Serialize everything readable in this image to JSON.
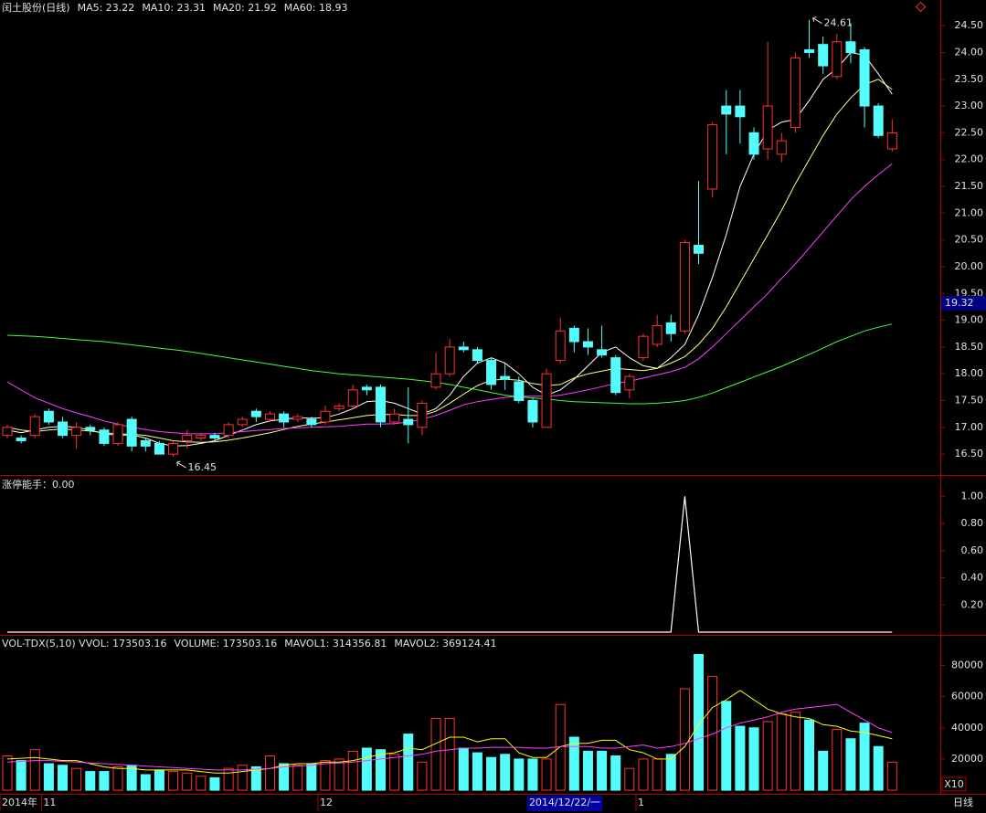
{
  "chart_data": [
    {
      "type": "candlestick",
      "title": "闰土股份(日线)",
      "up_color": "#ff3232",
      "down_color": "#54fcfc",
      "open": [
        16.85,
        16.8,
        16.85,
        17.3,
        17.1,
        16.85,
        17.0,
        16.95,
        16.7,
        17.15,
        16.75,
        16.7,
        16.5,
        16.75,
        16.8,
        16.85,
        16.85,
        17.05,
        17.3,
        17.15,
        17.25,
        17.15,
        17.15,
        17.1,
        17.35,
        17.4,
        17.75,
        17.75,
        17.1,
        17.15,
        17.0,
        17.75,
        18.0,
        18.5,
        18.45,
        18.25,
        17.95,
        17.85,
        17.5,
        17.0,
        18.25,
        18.85,
        18.6,
        18.45,
        18.3,
        17.7,
        18.3,
        18.55,
        18.95,
        18.8,
        20.4,
        21.45,
        23.0,
        23.0,
        22.5,
        22.2,
        22.1,
        22.6,
        24.05,
        24.15,
        23.55,
        24.2,
        24.05,
        23.0,
        22.2
      ],
      "high": [
        17.05,
        16.85,
        17.25,
        17.35,
        17.2,
        17.1,
        17.05,
        17.0,
        17.1,
        17.2,
        16.8,
        16.75,
        16.75,
        16.95,
        16.9,
        16.9,
        17.1,
        17.2,
        17.35,
        17.3,
        17.3,
        17.25,
        17.2,
        17.4,
        17.45,
        17.8,
        17.8,
        17.8,
        17.35,
        17.75,
        17.5,
        18.4,
        18.65,
        18.6,
        18.5,
        18.3,
        18.2,
        17.95,
        17.55,
        18.1,
        19.05,
        18.9,
        18.85,
        18.9,
        18.35,
        18.0,
        18.75,
        19.1,
        19.1,
        20.5,
        21.6,
        22.7,
        23.3,
        23.3,
        22.6,
        24.2,
        22.5,
        24.0,
        24.61,
        24.3,
        24.35,
        24.55,
        24.1,
        23.05,
        22.75
      ],
      "low": [
        16.8,
        16.7,
        16.8,
        17.05,
        16.8,
        16.6,
        16.85,
        16.65,
        16.65,
        16.55,
        16.55,
        16.5,
        16.45,
        16.6,
        16.75,
        16.75,
        16.8,
        17.0,
        17.1,
        17.1,
        17.0,
        17.1,
        17.0,
        17.05,
        17.3,
        17.35,
        17.6,
        17.0,
        17.05,
        16.7,
        16.85,
        17.7,
        17.95,
        18.4,
        18.2,
        17.7,
        17.7,
        17.45,
        17.0,
        17.0,
        18.2,
        18.4,
        18.35,
        18.3,
        17.6,
        17.55,
        18.25,
        18.5,
        18.6,
        18.75,
        20.05,
        21.3,
        22.1,
        22.3,
        22.0,
        22.0,
        21.95,
        22.5,
        23.9,
        23.6,
        23.5,
        23.8,
        22.6,
        22.4,
        22.15
      ],
      "close": [
        17.0,
        16.75,
        17.2,
        17.1,
        16.85,
        17.0,
        16.95,
        16.7,
        17.05,
        16.65,
        16.65,
        16.5,
        16.7,
        16.85,
        16.85,
        16.8,
        17.05,
        17.15,
        17.2,
        17.25,
        17.1,
        17.2,
        17.05,
        17.3,
        17.4,
        17.7,
        17.7,
        17.1,
        17.25,
        17.05,
        17.45,
        18.0,
        18.5,
        18.45,
        18.25,
        17.8,
        17.9,
        17.5,
        17.1,
        18.0,
        18.8,
        18.6,
        18.5,
        18.35,
        17.65,
        17.95,
        18.7,
        18.9,
        18.75,
        20.45,
        20.25,
        22.65,
        22.85,
        22.8,
        22.1,
        23.0,
        22.35,
        23.9,
        24.0,
        23.75,
        24.2,
        24.0,
        23.0,
        22.45,
        22.5
      ],
      "series": [
        {
          "name": "MA5: 23.22",
          "color": "#ffffff",
          "values": [
            16.95,
            16.9,
            16.95,
            17.0,
            17.02,
            17.0,
            16.95,
            16.88,
            16.85,
            16.86,
            16.8,
            16.7,
            16.65,
            16.66,
            16.7,
            16.75,
            16.85,
            16.95,
            17.05,
            17.12,
            17.15,
            17.18,
            17.17,
            17.18,
            17.25,
            17.35,
            17.48,
            17.5,
            17.45,
            17.35,
            17.25,
            17.35,
            17.6,
            17.95,
            18.2,
            18.3,
            18.2,
            18.0,
            17.75,
            17.6,
            17.7,
            17.9,
            18.15,
            18.4,
            18.5,
            18.3,
            18.15,
            18.1,
            18.3,
            18.55,
            19.1,
            19.8,
            20.6,
            21.5,
            22.1,
            22.55,
            22.7,
            22.75,
            23.1,
            23.5,
            23.7,
            24.0,
            23.95,
            23.6,
            23.22
          ]
        },
        {
          "name": "MA10: 23.31",
          "color": "#ffff80",
          "values": [
            17.0,
            16.95,
            16.92,
            16.95,
            16.97,
            16.95,
            16.93,
            16.9,
            16.88,
            16.87,
            16.85,
            16.8,
            16.75,
            16.73,
            16.72,
            16.73,
            16.76,
            16.8,
            16.85,
            16.9,
            16.96,
            17.02,
            17.06,
            17.1,
            17.14,
            17.18,
            17.22,
            17.24,
            17.24,
            17.22,
            17.22,
            17.3,
            17.45,
            17.62,
            17.78,
            17.88,
            17.9,
            17.88,
            17.82,
            17.78,
            17.8,
            17.92,
            18.0,
            18.05,
            18.1,
            18.08,
            18.06,
            18.1,
            18.2,
            18.32,
            18.55,
            18.85,
            19.25,
            19.7,
            20.15,
            20.6,
            21.05,
            21.55,
            22.0,
            22.45,
            22.85,
            23.15,
            23.4,
            23.5,
            23.31
          ]
        },
        {
          "name": "MA20: 21.92",
          "color": "#ff40ff",
          "values": [
            17.85,
            17.7,
            17.55,
            17.45,
            17.35,
            17.27,
            17.2,
            17.12,
            17.06,
            17.0,
            16.96,
            16.92,
            16.9,
            16.88,
            16.88,
            16.88,
            16.9,
            16.92,
            16.94,
            16.96,
            16.98,
            16.99,
            17.0,
            17.01,
            17.02,
            17.04,
            17.06,
            17.06,
            17.07,
            17.1,
            17.15,
            17.22,
            17.32,
            17.42,
            17.48,
            17.52,
            17.56,
            17.58,
            17.58,
            17.58,
            17.6,
            17.65,
            17.7,
            17.76,
            17.82,
            17.86,
            17.92,
            17.98,
            18.04,
            18.12,
            18.28,
            18.5,
            18.75,
            19.0,
            19.25,
            19.5,
            19.78,
            20.05,
            20.35,
            20.65,
            20.95,
            21.25,
            21.5,
            21.72,
            21.92
          ]
        },
        {
          "name": "MA60: 18.93",
          "color": "#40ff40",
          "values": [
            18.72,
            18.71,
            18.7,
            18.68,
            18.66,
            18.64,
            18.62,
            18.6,
            18.57,
            18.54,
            18.51,
            18.48,
            18.45,
            18.42,
            18.38,
            18.34,
            18.3,
            18.26,
            18.22,
            18.18,
            18.14,
            18.1,
            18.06,
            18.03,
            18.0,
            17.98,
            17.96,
            17.94,
            17.92,
            17.9,
            17.87,
            17.84,
            17.8,
            17.75,
            17.7,
            17.65,
            17.6,
            17.57,
            17.55,
            17.53,
            17.5,
            17.48,
            17.47,
            17.46,
            17.45,
            17.44,
            17.44,
            17.45,
            17.47,
            17.5,
            17.56,
            17.64,
            17.74,
            17.84,
            17.94,
            18.04,
            18.14,
            18.25,
            18.36,
            18.48,
            18.6,
            18.7,
            18.8,
            18.87,
            18.93
          ]
        }
      ],
      "annotations": [
        {
          "value": 24.61,
          "label": "24.61",
          "at": "high"
        },
        {
          "value": 16.45,
          "label": "16.45",
          "at": "low"
        }
      ],
      "price_marker": {
        "value": 19.32,
        "label": "19.32"
      },
      "ylim": [
        16.11,
        24.98
      ],
      "yticks": [
        {
          "value": 16.5,
          "label": "16.50"
        },
        {
          "value": 17,
          "label": "17.00"
        },
        {
          "value": 17.5,
          "label": "17.50"
        },
        {
          "value": 18,
          "label": "18.00"
        },
        {
          "value": 18.5,
          "label": "18.50"
        },
        {
          "value": 19,
          "label": "19.00"
        },
        {
          "value": 19.5,
          "label": "19.50"
        },
        {
          "value": 20,
          "label": "20.00"
        },
        {
          "value": 20.5,
          "label": "20.50"
        },
        {
          "value": 21,
          "label": "21.00"
        },
        {
          "value": 21.5,
          "label": "21.50"
        },
        {
          "value": 22,
          "label": "22.00"
        },
        {
          "value": 22.5,
          "label": "22.50"
        },
        {
          "value": 23,
          "label": "23.00"
        },
        {
          "value": 23.5,
          "label": "23.50"
        },
        {
          "value": 24,
          "label": "24.00"
        },
        {
          "value": 24.5,
          "label": "24.50"
        }
      ]
    },
    {
      "type": "line",
      "title": "涨停能手：0.00",
      "color": "#ffffff",
      "values": [
        0,
        0,
        0,
        0,
        0,
        0,
        0,
        0,
        0,
        0,
        0,
        0,
        0,
        0,
        0,
        0,
        0,
        0,
        0,
        0,
        0,
        0,
        0,
        0,
        0,
        0,
        0,
        0,
        0,
        0,
        0,
        0,
        0,
        0,
        0,
        0,
        0,
        0,
        0,
        0,
        0,
        0,
        0,
        0,
        0,
        0,
        0,
        0,
        0,
        1,
        0,
        0,
        0,
        0,
        0,
        0,
        0,
        0,
        0,
        0,
        0,
        0,
        0,
        0,
        0
      ],
      "ylim": [
        -0.02,
        1.15
      ],
      "yticks": [
        {
          "value": 0.2,
          "label": "0.20"
        },
        {
          "value": 0.4,
          "label": "0.40"
        },
        {
          "value": 0.6,
          "label": "0.60"
        },
        {
          "value": 0.8,
          "label": "0.80"
        },
        {
          "value": 1,
          "label": "1.00"
        }
      ]
    },
    {
      "type": "volume",
      "title": "VOL-TDX(5,10) VVOL: 173503.16",
      "volume_label": "VOLUME: 173503.16",
      "volume_label_color": "#ffff00",
      "values": [
        22000,
        19000,
        26000,
        17000,
        16000,
        14000,
        12000,
        12000,
        15000,
        16000,
        10000,
        13000,
        12000,
        11000,
        9000,
        8000,
        14000,
        16000,
        15000,
        22000,
        17000,
        16000,
        17000,
        19000,
        20000,
        25000,
        27000,
        26000,
        23000,
        36000,
        18000,
        46000,
        46000,
        27000,
        24000,
        21000,
        23000,
        20000,
        20000,
        20000,
        55000,
        34000,
        25000,
        25000,
        22000,
        14000,
        20000,
        20000,
        23000,
        65000,
        87000,
        73000,
        57000,
        41000,
        40000,
        44000,
        49000,
        50000,
        45000,
        25000,
        39000,
        33000,
        43000,
        28000,
        18000
      ],
      "series": [
        {
          "name": "MAVOL1: 314356.81",
          "color": "#ffff00",
          "values": [
            20000,
            20500,
            21000,
            20000,
            19000,
            19000,
            17000,
            15000,
            14000,
            14000,
            13000,
            13000,
            13000,
            13000,
            12000,
            11000,
            11000,
            12000,
            13000,
            14000,
            16000,
            17000,
            17000,
            18000,
            18000,
            19000,
            21000,
            23000,
            24000,
            27000,
            26000,
            30000,
            34000,
            34000,
            31000,
            33000,
            33000,
            24000,
            21000,
            21000,
            28000,
            30000,
            30000,
            32000,
            32000,
            26000,
            24000,
            20000,
            20000,
            28000,
            42000,
            53000,
            58000,
            64000,
            58000,
            52000,
            49000,
            47000,
            46000,
            42000,
            41000,
            38000,
            37000,
            35000,
            33000
          ]
        },
        {
          "name": "MAVOL2: 369124.41",
          "color": "#ff40ff",
          "values": [
            18000,
            18500,
            19000,
            19000,
            18500,
            18000,
            17500,
            17000,
            16500,
            16000,
            15500,
            15000,
            14500,
            14000,
            13500,
            13000,
            13000,
            13000,
            13500,
            14000,
            15000,
            15500,
            16000,
            17000,
            17500,
            18000,
            19000,
            20000,
            21000,
            22000,
            23000,
            25000,
            26000,
            27000,
            27000,
            27500,
            27500,
            27500,
            27000,
            27000,
            28000,
            28000,
            28000,
            27000,
            27000,
            28000,
            29000,
            27000,
            28000,
            30000,
            33000,
            36000,
            40000,
            43000,
            45000,
            47000,
            50000,
            52000,
            53000,
            54000,
            55000,
            50000,
            45000,
            40000,
            37000
          ]
        }
      ],
      "categories": [
        "2014年",
        null,
        null,
        "11",
        null,
        null,
        null,
        null,
        null,
        null,
        null,
        null,
        null,
        null,
        null,
        null,
        null,
        null,
        null,
        null,
        null,
        null,
        null,
        "12",
        null,
        null,
        null,
        null,
        null,
        null,
        null,
        null,
        null,
        null,
        null,
        null,
        null,
        null,
        "2014/12/22/一",
        null,
        null,
        null,
        null,
        null,
        null,
        null,
        "1",
        null,
        null,
        null,
        null,
        null,
        null,
        null,
        null,
        null,
        null,
        null,
        null,
        null,
        null,
        null,
        null,
        null,
        null
      ],
      "selected_category": 38,
      "unit_label": "X10",
      "period_label": "日线",
      "ylim": [
        -2300,
        99000
      ],
      "yticks": [
        20000,
        40000,
        60000,
        80000
      ]
    }
  ]
}
